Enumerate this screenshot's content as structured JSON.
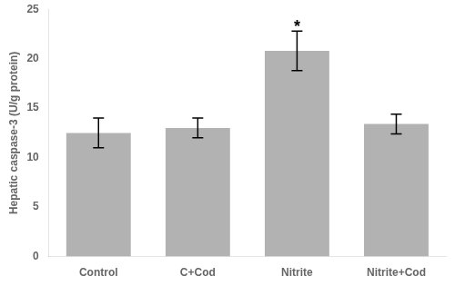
{
  "chart_data": {
    "type": "bar",
    "categories": [
      "Control",
      "C+Cod",
      "Nitrite",
      "Nitrite+Cod"
    ],
    "values": [
      12.5,
      13.0,
      20.8,
      13.4
    ],
    "errors": [
      1.5,
      1.0,
      2.0,
      1.0
    ],
    "color": "#b2b2b2",
    "ylabel": "Hepatic caspase-3 (U/g protein)",
    "ylim": [
      0,
      25
    ],
    "yticks": [
      0,
      5,
      10,
      15,
      20,
      25
    ],
    "annotations": [
      {
        "text": "*",
        "x": "Nitrite"
      }
    ],
    "grid": false
  }
}
